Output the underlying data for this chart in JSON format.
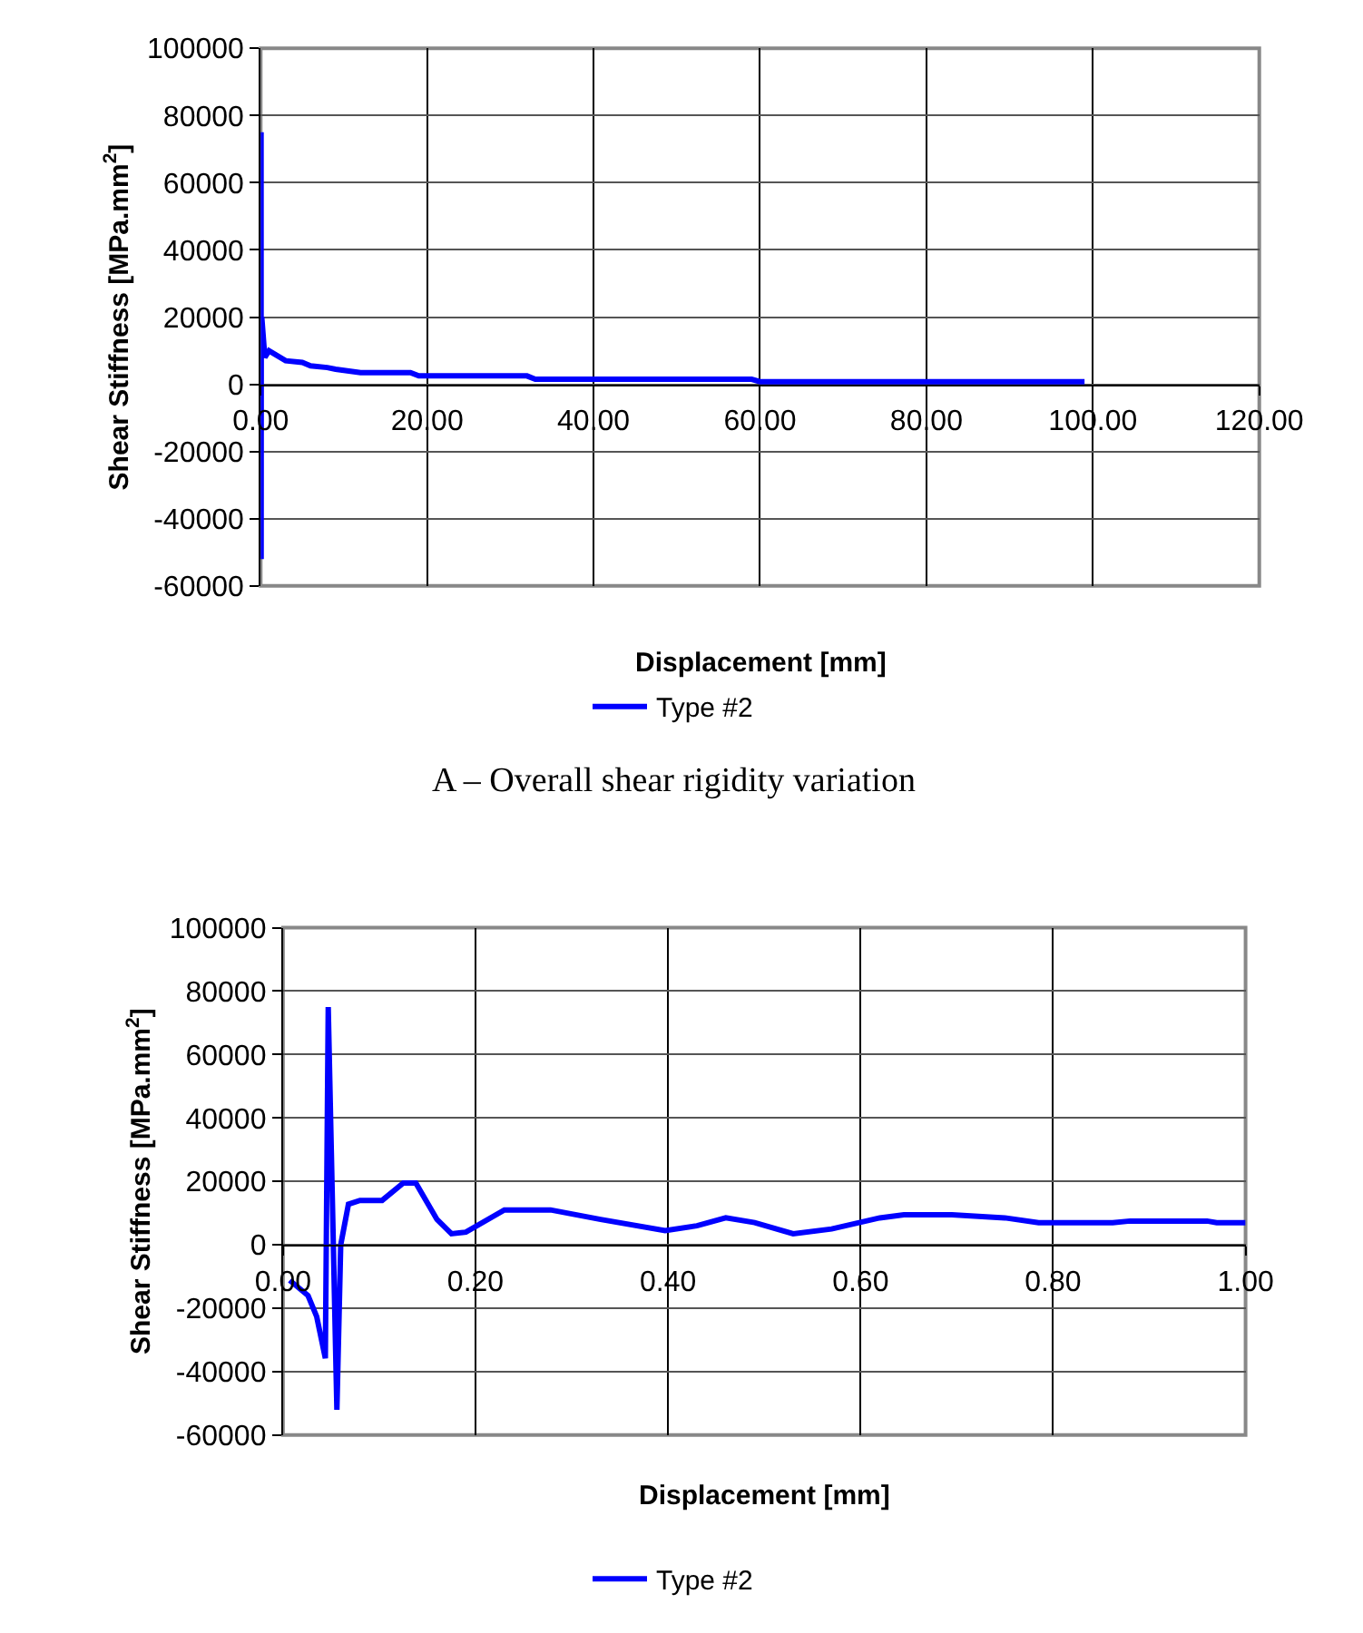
{
  "chart_data": [
    {
      "type": "line",
      "xlabel": "Displacement [mm]",
      "ylabel": "Shear Stiffness [MPa.mm$^{2}$]",
      "series": [
        {
          "name": "Type #2",
          "color": "#0000ff",
          "x": [
            0,
            0.03,
            0.047,
            0.056,
            0.07,
            0.13,
            0.5,
            1,
            3,
            5,
            6,
            8,
            9,
            12,
            18,
            19,
            32,
            33,
            59,
            60,
            99
          ],
          "values": [
            -11000,
            -22000,
            75000,
            -52000,
            12000,
            20000,
            8000,
            10000,
            7000,
            6500,
            5500,
            5000,
            4500,
            3500,
            3500,
            2500,
            2500,
            1500,
            1500,
            800,
            800
          ]
        }
      ],
      "xlim": [
        0,
        120
      ],
      "xticks": [
        {
          "value": 0,
          "label": "0.00"
        },
        {
          "value": 20,
          "label": "20.00"
        },
        {
          "value": 40,
          "label": "40.00"
        },
        {
          "value": 60,
          "label": "60.00"
        },
        {
          "value": 80,
          "label": "80.00"
        },
        {
          "value": 100,
          "label": "100.00"
        },
        {
          "value": 120,
          "label": "120.00"
        }
      ],
      "ylim": [
        -60000,
        100000
      ],
      "yticks": [
        -60000,
        -40000,
        -20000,
        0,
        20000,
        40000,
        60000,
        80000,
        100000
      ],
      "grid": true,
      "legend": "bottom",
      "annotations": [
        "A – Overall shear rigidity variation"
      ]
    },
    {
      "type": "line",
      "xlabel": "Displacement [mm]",
      "ylabel": "Shear Stiffness [MPa.mm$^{2}$]",
      "series": [
        {
          "name": "Type #2",
          "color": "#0000ff",
          "x": [
            0.007,
            0.026,
            0.035,
            0.044,
            0.047,
            0.056,
            0.06,
            0.068,
            0.08,
            0.103,
            0.125,
            0.138,
            0.16,
            0.175,
            0.19,
            0.23,
            0.278,
            0.33,
            0.397,
            0.43,
            0.46,
            0.49,
            0.53,
            0.57,
            0.62,
            0.645,
            0.695,
            0.75,
            0.785,
            0.862,
            0.88,
            0.96,
            0.97,
            1.0
          ],
          "values": [
            -11200,
            -16000,
            -22600,
            -35800,
            75000,
            -52000,
            0,
            12800,
            14000,
            14000,
            19500,
            19500,
            8000,
            3500,
            4000,
            11000,
            11000,
            8000,
            4500,
            6000,
            8500,
            7000,
            3500,
            5000,
            8500,
            9500,
            9500,
            8500,
            7000,
            7000,
            7500,
            7500,
            7000,
            7000
          ]
        }
      ],
      "xlim": [
        0,
        1
      ],
      "xticks": [
        {
          "value": 0,
          "label": "0.00"
        },
        {
          "value": 0.2,
          "label": "0.20"
        },
        {
          "value": 0.4,
          "label": "0.40"
        },
        {
          "value": 0.6,
          "label": "0.60"
        },
        {
          "value": 0.8,
          "label": "0.80"
        },
        {
          "value": 1,
          "label": "1.00"
        }
      ],
      "ylim": [
        -60000,
        100000
      ],
      "yticks": [
        -60000,
        -40000,
        -20000,
        0,
        20000,
        40000,
        60000,
        80000,
        100000
      ],
      "grid": true,
      "legend": "bottom"
    }
  ]
}
